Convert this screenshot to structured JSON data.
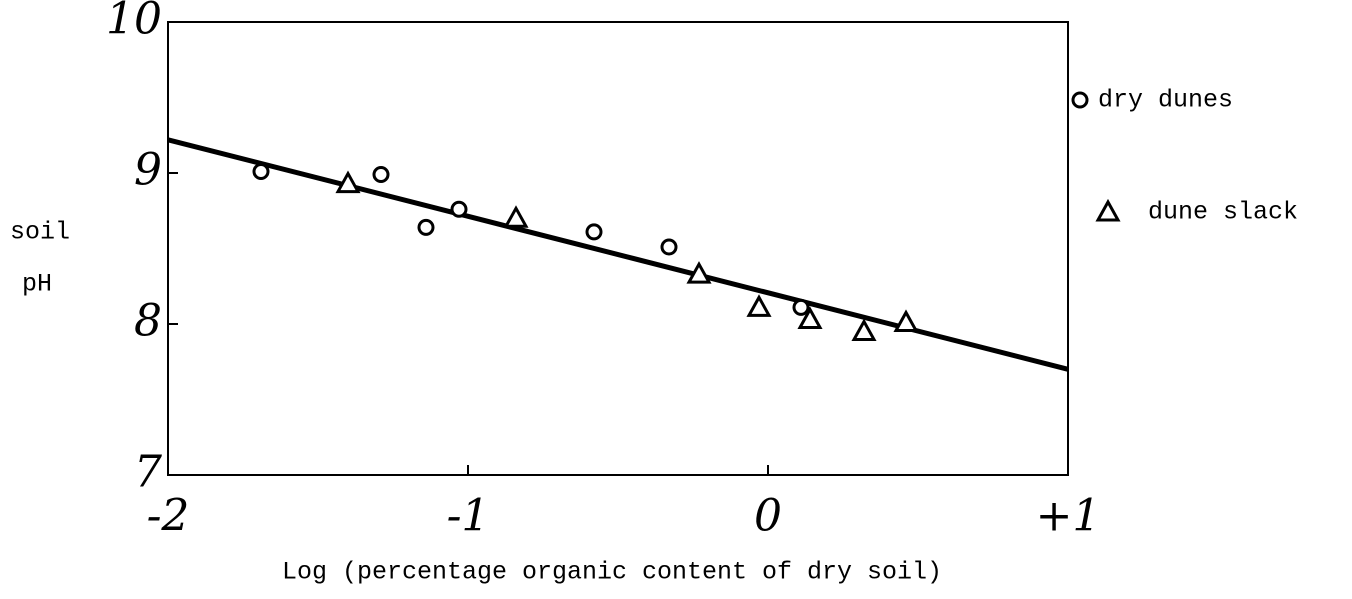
{
  "chart_data": {
    "type": "scatter",
    "xlabel": "Log (percentage organic content of dry soil)",
    "ylabel": [
      "soil",
      "pH"
    ],
    "xlim": [
      -2,
      1
    ],
    "ylim": [
      7,
      10
    ],
    "xticks": [
      -2,
      -1,
      0,
      {
        "value": 1,
        "label": "+1"
      }
    ],
    "yticks": [
      7,
      8,
      9,
      10
    ],
    "series": [
      {
        "name": "dry dunes",
        "marker": "circle",
        "color": "#000000",
        "x": [
          -1.69,
          -1.29,
          -1.14,
          -1.03,
          -0.58,
          -0.33,
          0.11
        ],
        "values": [
          9.01,
          8.99,
          8.64,
          8.76,
          8.61,
          8.51,
          8.11
        ]
      },
      {
        "name": "dune slack",
        "marker": "triangle",
        "color": "#000000",
        "x": [
          -1.4,
          -0.84,
          -0.23,
          -0.03,
          0.14,
          0.32,
          0.46
        ],
        "values": [
          8.93,
          8.7,
          8.33,
          8.11,
          8.03,
          7.95,
          8.01
        ]
      }
    ],
    "trend_line": {
      "x": [
        -2,
        1
      ],
      "y": [
        9.22,
        7.7
      ],
      "color": "#000000"
    }
  }
}
